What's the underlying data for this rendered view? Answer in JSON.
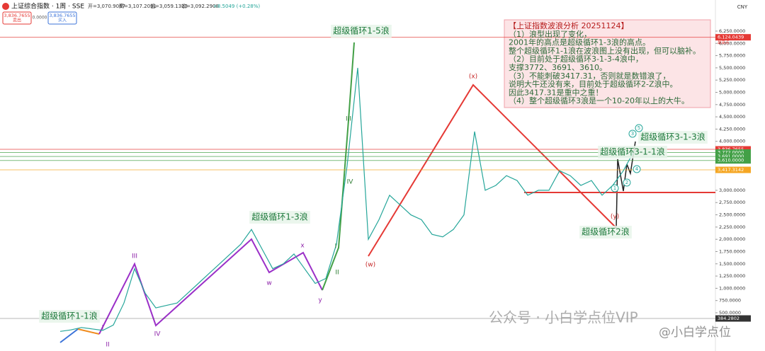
{
  "header": {
    "symbol": "上证综合指数 · 1周 · SSE",
    "ohlc": [
      "开=3,070.9087",
      "高=3,107.2031",
      "低=3,059.1313",
      "收=3,092.2908"
    ],
    "change": "+8.5049 (+0.28%)",
    "sell_price": "3,836.7655",
    "sell": "卖出",
    "spread": "0.0000",
    "buy_price": "3,836.7655",
    "buy": "买入",
    "currency": "CNY"
  },
  "chart_data": {
    "type": "line",
    "categories": [
      null,
      null,
      null,
      null,
      null,
      null,
      null,
      null,
      null,
      null,
      null,
      null,
      null,
      null,
      null,
      null,
      null,
      null,
      null,
      null,
      null,
      null,
      null,
      null,
      null,
      null,
      null,
      null,
      null,
      null,
      null,
      null,
      null,
      null,
      null,
      null,
      null,
      null,
      null,
      null,
      null,
      null,
      null,
      null,
      null,
      null,
      null,
      null,
      null,
      null,
      null,
      null,
      null,
      null,
      null
    ],
    "values": [
      120,
      150,
      200,
      170,
      140,
      250,
      700,
      1400,
      900,
      600,
      650,
      700,
      900,
      1100,
      1300,
      1500,
      1700,
      1900,
      2200,
      1800,
      1400,
      1500,
      1700,
      1400,
      1100,
      1200,
      1900,
      3500,
      5500,
      2000,
      2400,
      2900,
      2700,
      2500,
      2400,
      2100,
      2050,
      2200,
      2500,
      4200,
      3000,
      3100,
      3300,
      3200,
      2900,
      3000,
      3000,
      3400,
      3300,
      3100,
      3200,
      2900,
      3100,
      3400,
      3800
    ],
    "color": "#26a69a",
    "ylim": [
      -280,
      6885
    ],
    "yticks": [
      {
        "value": 500,
        "label": "500.0000"
      },
      {
        "value": 750,
        "label": "750.0000"
      },
      {
        "value": 1000,
        "label": "1,000.0000"
      },
      {
        "value": 1250,
        "label": "1,250.0000"
      },
      {
        "value": 1500,
        "label": "1,500.0000"
      },
      {
        "value": 1750,
        "label": "1,750.0000"
      },
      {
        "value": 2000,
        "label": "2,000.0000"
      },
      {
        "value": 2250,
        "label": "2,250.0000"
      },
      {
        "value": 2500,
        "label": "2,500.0000"
      },
      {
        "value": 2750,
        "label": "2,750.0000"
      },
      {
        "value": 3000,
        "label": "3,000.0000"
      },
      {
        "value": 4000,
        "label": "4,000.0000"
      },
      {
        "value": 4250,
        "label": "4,250.0000"
      },
      {
        "value": 4500,
        "label": "4,500.0000"
      },
      {
        "value": 4750,
        "label": "4,750.0000"
      },
      {
        "value": 5000,
        "label": "5,000.0000"
      },
      {
        "value": 5250,
        "label": "5,250.0000"
      },
      {
        "value": 5500,
        "label": "5,500.0000"
      },
      {
        "value": 5750,
        "label": "5,750.0000"
      },
      {
        "value": 6000,
        "label": "6,000.0000"
      },
      {
        "value": 6250,
        "label": "6,250.0000"
      }
    ],
    "price_tags": [
      {
        "value": 6124.0439,
        "label": "6,124.0439",
        "note": "最高点",
        "color": "#e53935"
      },
      {
        "value": 3836.7655,
        "label": "3,836.7655",
        "note": "3d 19h",
        "color": "#e53935"
      },
      {
        "value": 3772,
        "label": "3,772.0000",
        "color": "#43a047"
      },
      {
        "value": 3691,
        "label": "3,691.0000",
        "color": "#43a047"
      },
      {
        "value": 3610,
        "label": "3,610.0000",
        "color": "#43a047"
      },
      {
        "value": 3417.3142,
        "label": "3,417.3142",
        "color": "#f5a623"
      },
      {
        "value": 384.2802,
        "label": "384.2802",
        "color": "#333333"
      }
    ],
    "wave_labels": [
      "超级循环1-1浪",
      "超级循环1-3浪",
      "超级循环1-5浪",
      "超级循环2浪",
      "超级循环3-1-1浪",
      "超级循环3-1-3浪"
    ],
    "wave_marks": [
      "(x)",
      "(w)",
      "(y)",
      "I",
      "II",
      "III",
      "IV",
      "I",
      "II",
      "III",
      "IV",
      "x",
      "w",
      "y"
    ],
    "circled": [
      "5",
      "3",
      "1",
      "4",
      "2"
    ],
    "analysis": [
      "【上证指数波浪分析 20251124】",
      "（1）浪型出现了变化，",
      "2001年的高点是超级循环1-3浪的高点。",
      "整个超级循环1-1浪在波浪图上没有出现，但可以脑补。",
      "（2）目前处于超级循环3-1-3-4浪中，",
      "支撑3772、3691、3610。",
      "（3）不能刺破3417.31，否则就是数错浪了，",
      "说明大牛还没有来，目前处于超级循环2-Z浪中。",
      "因此3417.31是重中之重！",
      "（4）整个超级循环3浪是一个10-20年以上的大牛。"
    ]
  },
  "watermark": [
    "公众号 · 小白学点位VIP",
    "@小白学点位"
  ]
}
